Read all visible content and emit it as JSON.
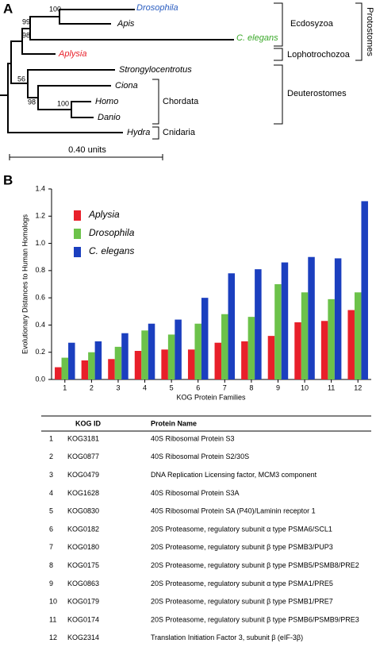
{
  "tree": {
    "label": "A",
    "taxa": [
      "Drosophila",
      "Apis",
      "C. elegans",
      "Aplysia",
      "Strongylocentrotus",
      "Ciona",
      "Homo",
      "Danio",
      "Hydra"
    ],
    "support": [
      "100",
      "99",
      "98",
      "56",
      "98",
      "100"
    ],
    "groups": [
      "Ecdosyzoa",
      "Lophotrochozoa",
      "Protostomes",
      "Deuterostomes",
      "Chordata",
      "Cnidaria"
    ],
    "scale": "0.40 units"
  },
  "panel_b_label": "B",
  "chart_data": {
    "type": "bar",
    "y_label": "Evolutionary Distances to Human Homologs",
    "x_label": "KOG Protein Families",
    "categories": [
      "1",
      "2",
      "3",
      "4",
      "5",
      "6",
      "7",
      "8",
      "9",
      "10",
      "11",
      "12"
    ],
    "series": [
      {
        "name": "Aplysia",
        "color": "#e8202a",
        "values": [
          0.09,
          0.14,
          0.15,
          0.21,
          0.22,
          0.22,
          0.27,
          0.28,
          0.32,
          0.42,
          0.43,
          0.51
        ]
      },
      {
        "name": "Drosophila",
        "color": "#6cc24a",
        "values": [
          0.16,
          0.2,
          0.24,
          0.36,
          0.33,
          0.41,
          0.48,
          0.46,
          0.7,
          0.64,
          0.59,
          0.64
        ]
      },
      {
        "name": "C. elegans",
        "color": "#1b3fbf",
        "values": [
          0.27,
          0.28,
          0.34,
          0.41,
          0.44,
          0.6,
          0.78,
          0.81,
          0.86,
          0.9,
          0.89,
          1.31
        ]
      }
    ],
    "ylim": [
      0,
      1.4
    ],
    "yticks": [
      {
        "value": 0,
        "label": "0.0"
      },
      0.2,
      0.4,
      0.6,
      0.8,
      {
        "value": 1,
        "label": "1.0"
      },
      1.2,
      1.4
    ],
    "grid": false
  },
  "table": {
    "headers": [
      "KOG ID",
      "Protein Name"
    ],
    "rows": [
      [
        "1",
        "KOG3181",
        "40S Ribosomal Protein S3"
      ],
      [
        "2",
        "KOG0877",
        "40S Ribosomal Protein S2/30S"
      ],
      [
        "3",
        "KOG0479",
        "DNA Replication Licensing factor, MCM3 component"
      ],
      [
        "4",
        "KOG1628",
        "40S Ribosomal Protein S3A"
      ],
      [
        "5",
        "KOG0830",
        "40S Ribosomal Protein SA (P40)/Laminin receptor 1"
      ],
      [
        "6",
        "KOG0182",
        "20S Proteasome, regulatory subunit α type PSMA6/SCL1"
      ],
      [
        "7",
        "KOG0180",
        "20S Proteasome, regulatory subunit β type PSMB3/PUP3"
      ],
      [
        "8",
        "KOG0175",
        "20S Proteasome, regulatory subunit β type PSMB5/PSMB8/PRE2"
      ],
      [
        "9",
        "KOG0863",
        "20S Proteasome, regulatory subunit α type PSMA1/PRE5"
      ],
      [
        "10",
        "KOG0179",
        "20S Proteasome, regulatory subunit β type PSMB1/PRE7"
      ],
      [
        "11",
        "KOG0174",
        "20S Proteasome, regulatory subunit β type PSMB6/PSMB9/PRE3"
      ],
      [
        "12",
        "KOG2314",
        "Translation Initiation Factor 3, subunit β (eIF-3β)"
      ]
    ]
  }
}
